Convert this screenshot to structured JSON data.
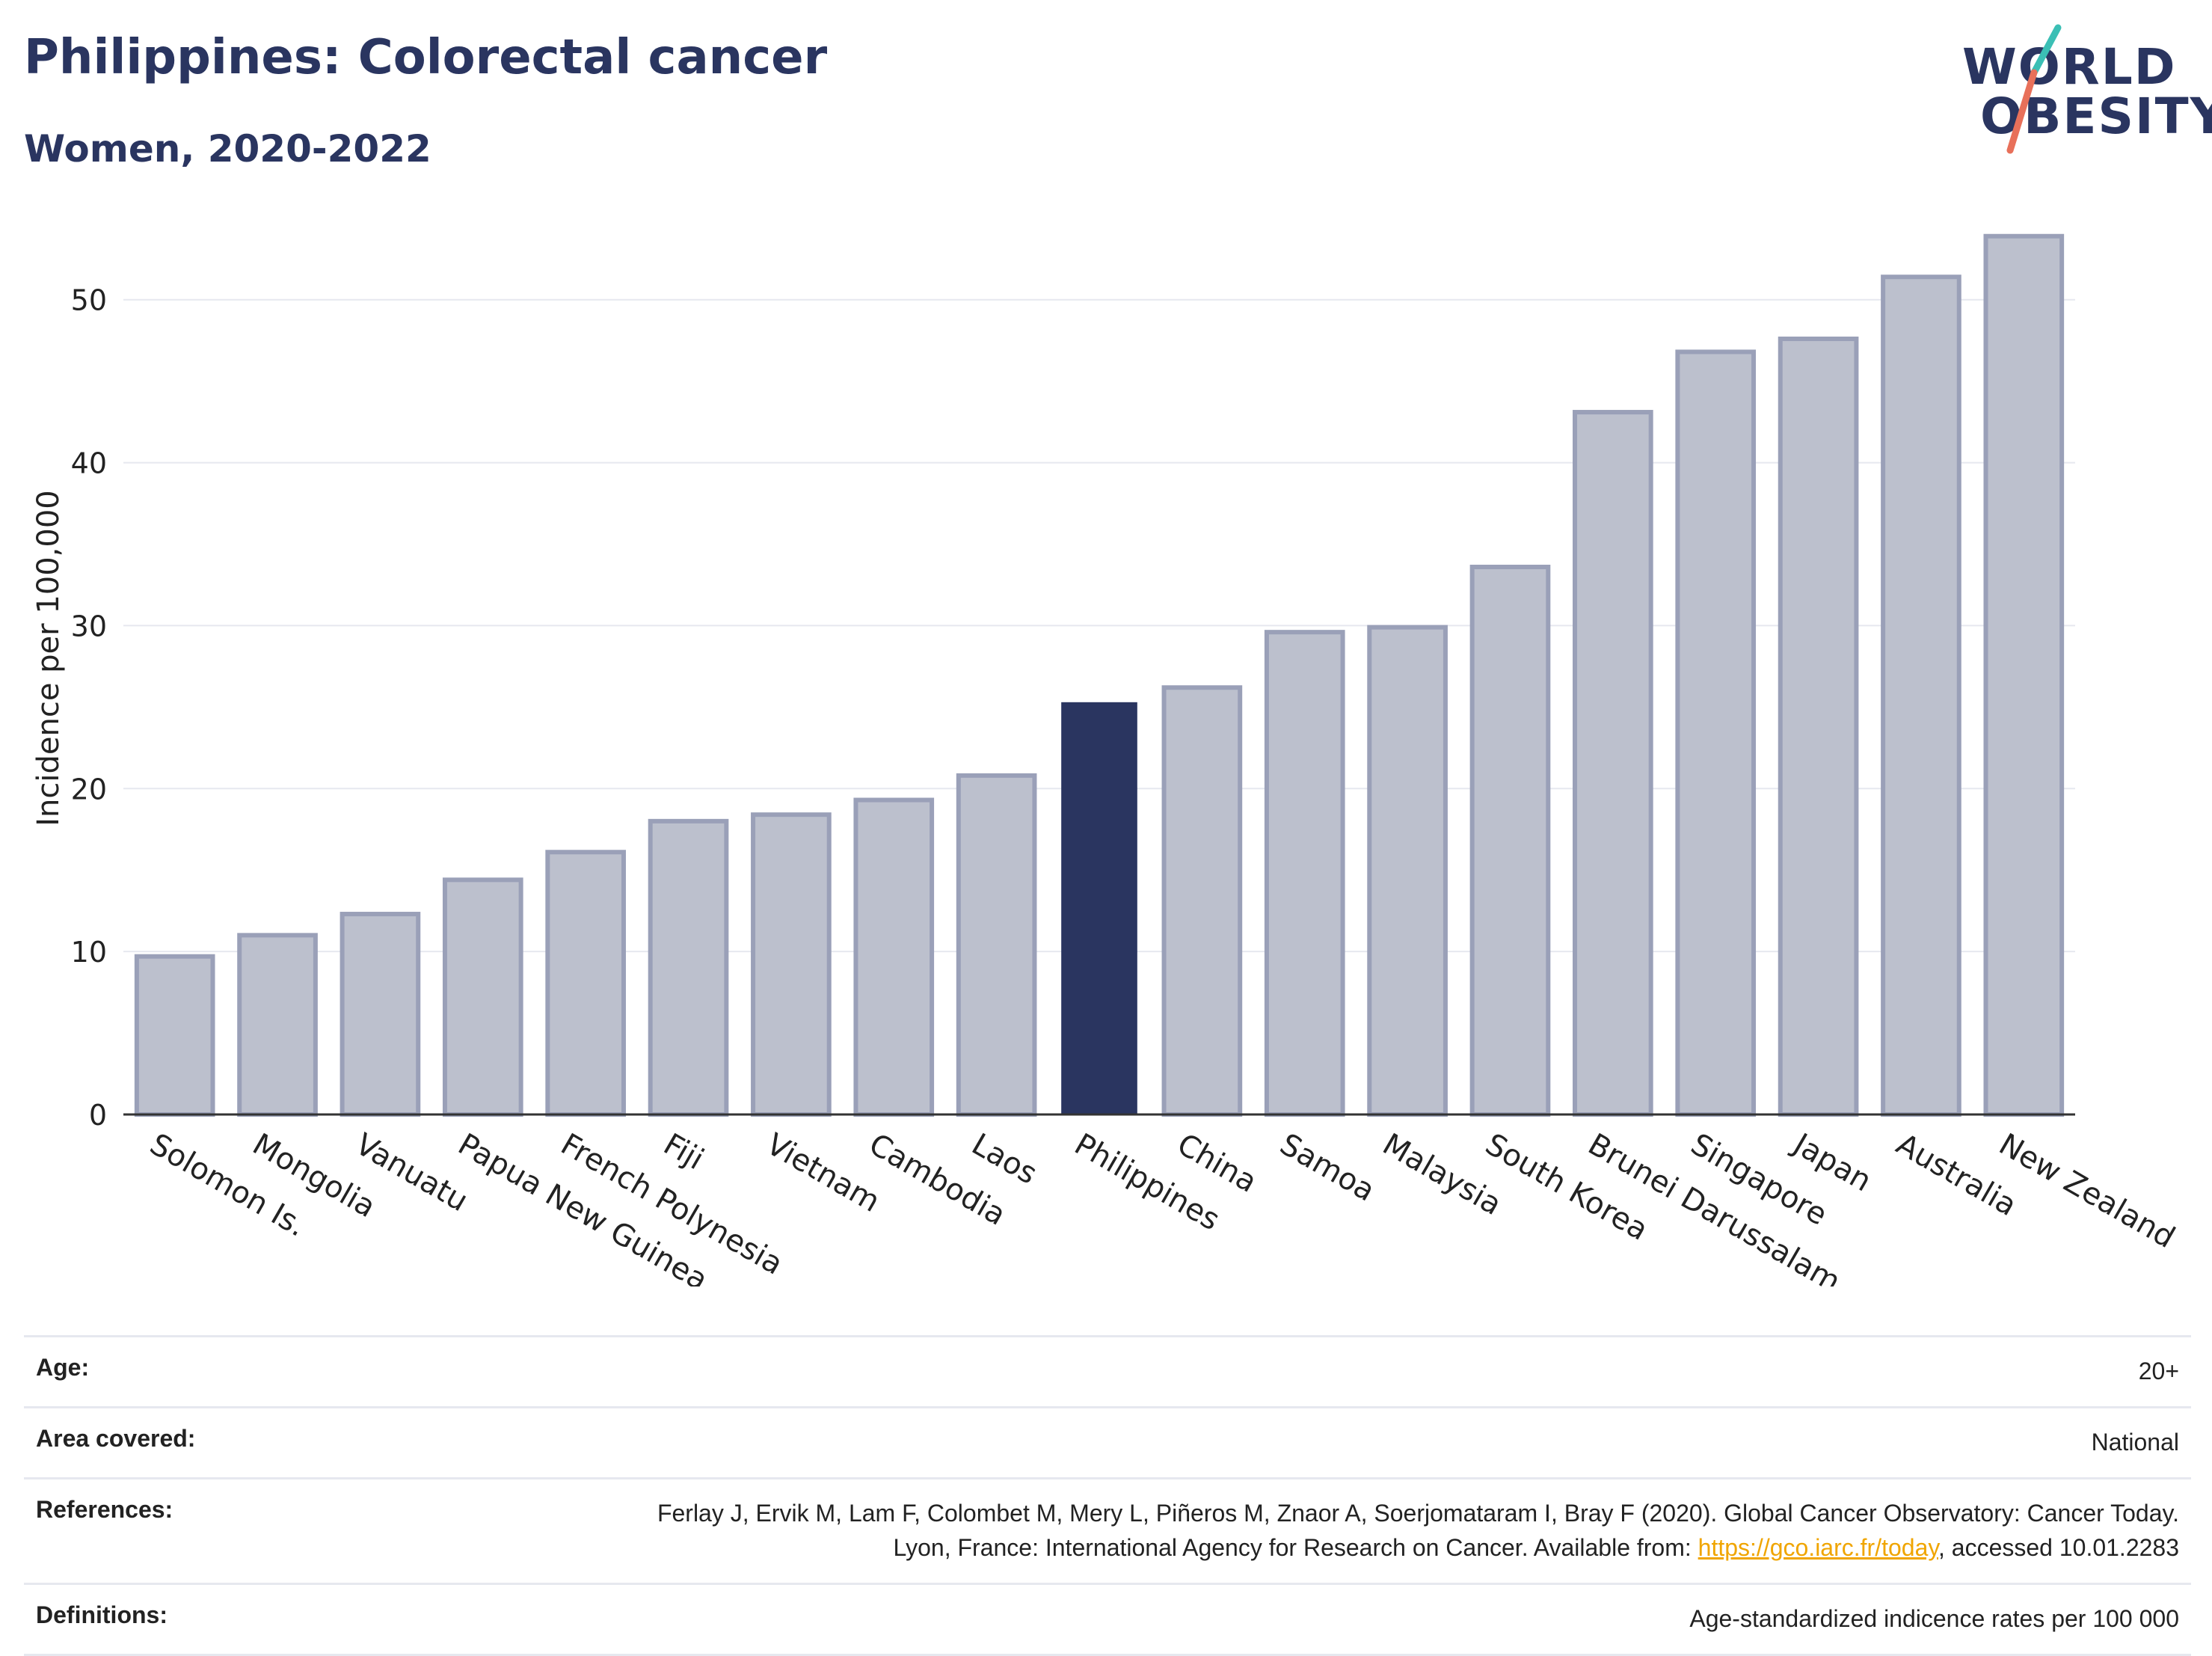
{
  "header": {
    "title": "Philippines: Colorectal cancer",
    "subtitle": "Women, 2020-2022"
  },
  "logo": {
    "line1": "WORLD",
    "line2": "OBESITY",
    "slash_color_top": "#3bbfb5",
    "slash_color_bottom": "#e8705a"
  },
  "colors": {
    "highlight": "#2a3560",
    "other_fill": "#bcc0cd",
    "other_stroke": "#9aa0b8",
    "grid": "#e6e8ef"
  },
  "chart_data": {
    "type": "bar",
    "categories": [
      "Solomon Is.",
      "Mongolia",
      "Vanuatu",
      "Papua New Guinea",
      "French Polynesia",
      "Fiji",
      "Vietnam",
      "Cambodia",
      "Laos",
      "Philippines",
      "China",
      "Samoa",
      "Malaysia",
      "South Korea",
      "Brunei Darussalam",
      "Singapore",
      "Japan",
      "Australia",
      "New Zealand"
    ],
    "values": [
      9.7,
      11.0,
      12.3,
      14.4,
      16.1,
      18.0,
      18.4,
      19.3,
      20.8,
      25.3,
      26.2,
      29.6,
      29.9,
      33.6,
      43.1,
      46.8,
      47.6,
      51.4,
      53.9
    ],
    "highlight": "Philippines",
    "title": "",
    "xlabel": "",
    "ylabel": "Incidence per 100,000",
    "ylim": [
      0,
      56
    ],
    "yticks": [
      0,
      10,
      20,
      30,
      40,
      50
    ],
    "grid": true
  },
  "info": {
    "age_label": "Age:",
    "age_value": "20+",
    "area_label": "Area covered:",
    "area_value": "National",
    "references_label": "References:",
    "references_text": "Ferlay J, Ervik M, Lam F, Colombet M, Mery L, Piñeros M, Znaor A, Soerjomataram I, Bray F (2020). Global Cancer Observatory: Cancer Today. Lyon, France: International Agency for Research on Cancer. Available from: ",
    "references_link": "https://gco.iarc.fr/today",
    "references_suffix": ", accessed 10.01.2283",
    "definitions_label": "Definitions:",
    "definitions_value": "Age-standardized indicence rates per 100 000"
  }
}
